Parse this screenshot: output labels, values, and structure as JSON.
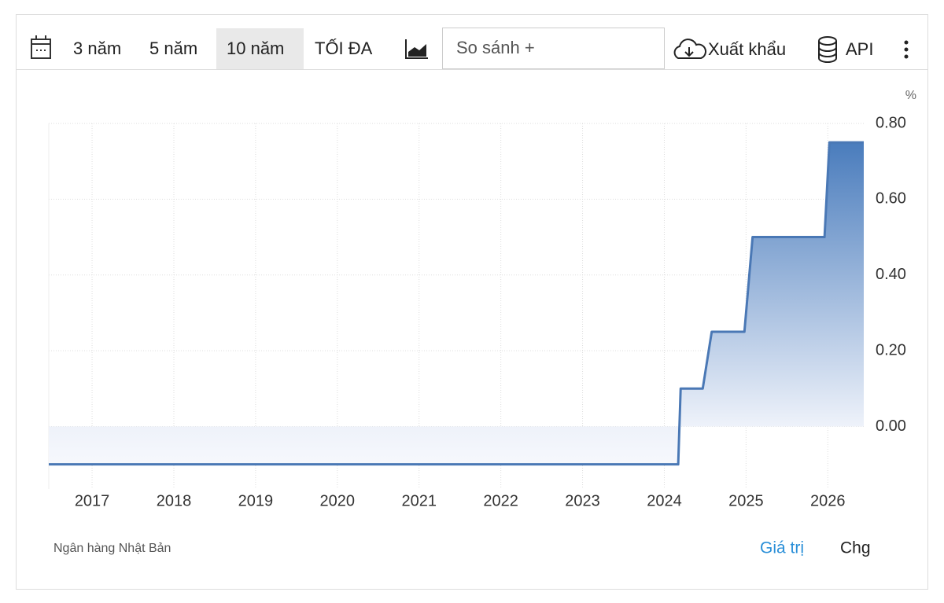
{
  "toolbar": {
    "ranges": [
      "3 năm",
      "5 năm",
      "10 năm",
      "TỐI ĐA"
    ],
    "compare": "So sánh +",
    "export": "Xuất khẩu",
    "api": "API"
  },
  "chart_data": {
    "type": "line",
    "unit": "%",
    "x": [
      2016.47,
      2024.17,
      2024.2,
      2024.47,
      2024.58,
      2024.98,
      2025.08,
      2025.96,
      2026.02,
      2026.44
    ],
    "series": [
      {
        "color": "#4a78b5",
        "values": [
          -0.1,
          -0.1,
          0.1,
          0.1,
          0.25,
          0.25,
          0.5,
          0.5,
          0.75,
          0.75
        ]
      }
    ],
    "xlim": [
      2016.47,
      2026.44
    ],
    "xticks": [
      2017,
      2018,
      2019,
      2020,
      2021,
      2022,
      2023,
      2024,
      2025,
      2026
    ],
    "ylim": [
      -0.165,
      0.8
    ],
    "yticks": [
      {
        "value": 0,
        "label": "0.00"
      },
      {
        "value": 0.2,
        "label": "0.20"
      },
      {
        "value": 0.4,
        "label": "0.40"
      },
      {
        "value": 0.6,
        "label": "0.60"
      },
      {
        "value": 0.8,
        "label": "0.80"
      }
    ],
    "grid": true
  },
  "footer": {
    "source": "Ngân hàng Nhật Bản",
    "tabs": [
      "Giá trị",
      "Chg"
    ]
  }
}
